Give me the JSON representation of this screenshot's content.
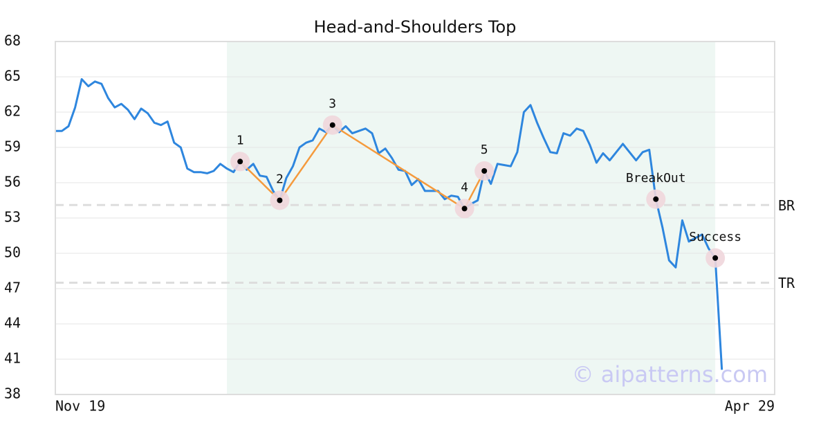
{
  "chart_data": {
    "type": "line",
    "title": "Head-and-Shoulders Top",
    "categories": [
      "Nov 19",
      null,
      null,
      null,
      null,
      null,
      null,
      null,
      null,
      null,
      null,
      null,
      null,
      null,
      null,
      null,
      null,
      null,
      null,
      null,
      null,
      null,
      null,
      null,
      null,
      null,
      null,
      null,
      null,
      null,
      null,
      null,
      null,
      null,
      null,
      null,
      null,
      null,
      null,
      null,
      null,
      null,
      null,
      null,
      null,
      null,
      null,
      null,
      null,
      null,
      null,
      null,
      null,
      null,
      null,
      null,
      null,
      null,
      null,
      null,
      null,
      null,
      null,
      null,
      null,
      null,
      null,
      null,
      null,
      null,
      null,
      null,
      null,
      null,
      null,
      null,
      null,
      null,
      null,
      null,
      null,
      null,
      null,
      null,
      null,
      null,
      null,
      null,
      null,
      null,
      null,
      null,
      null,
      null,
      null,
      null,
      null,
      null,
      null,
      null,
      null,
      "Apr 29"
    ],
    "series": [
      {
        "color": "#2e86de",
        "values": [
          60.4,
          60.4,
          60.8,
          62.4,
          64.8,
          64.2,
          64.6,
          64.4,
          63.2,
          62.4,
          62.7,
          62.2,
          61.4,
          62.3,
          61.9,
          61.1,
          60.9,
          61.2,
          59.4,
          59.0,
          57.2,
          56.9,
          56.9,
          56.8,
          57.0,
          57.6,
          57.2,
          56.9,
          57.8,
          57.1,
          57.6,
          56.6,
          56.5,
          55.3,
          54.5,
          56.4,
          57.4,
          59.0,
          59.4,
          59.6,
          60.6,
          60.3,
          60.9,
          60.3,
          60.8,
          60.2,
          60.4,
          60.6,
          60.2,
          58.5,
          58.9,
          58.1,
          57.1,
          57.0,
          55.8,
          56.3,
          55.3,
          55.3,
          55.3,
          54.6,
          54.9,
          54.8,
          53.8,
          54.2,
          54.5,
          57.0,
          55.9,
          57.6,
          57.5,
          57.4,
          58.6,
          62.0,
          62.6,
          61.1,
          59.8,
          58.6,
          58.5,
          60.2,
          60.0,
          60.6,
          60.4,
          59.2,
          57.7,
          58.5,
          57.9,
          58.6,
          59.3,
          58.6,
          57.9,
          58.6,
          58.8,
          54.6,
          52.2,
          49.4,
          48.8,
          52.8,
          51.0,
          51.3,
          51.6,
          50.4,
          49.6,
          40.1
        ]
      }
    ],
    "pattern_color": "#f59a3c",
    "pattern_points": [
      {
        "label": "1",
        "index": 28,
        "value": 57.8
      },
      {
        "label": "2",
        "index": 34,
        "value": 54.5
      },
      {
        "label": "3",
        "index": 42,
        "value": 60.9
      },
      {
        "label": "4",
        "index": 62,
        "value": 53.8
      },
      {
        "label": "5",
        "index": 65,
        "value": 57.0
      }
    ],
    "signal_points": [
      {
        "label": "BreakOut",
        "index": 91,
        "value": 54.6
      },
      {
        "label": "Success",
        "index": 100,
        "value": 49.6
      }
    ],
    "levels": [
      {
        "name": "BR",
        "value": 54.1
      },
      {
        "name": "TR",
        "value": 47.5
      }
    ],
    "highlight": [
      26,
      100
    ],
    "highlight_color": "#eef7f3",
    "ylim": [
      38,
      68
    ],
    "yticks": [
      38,
      41,
      44,
      47,
      50,
      53,
      56,
      59,
      62,
      65,
      68
    ],
    "grid": true,
    "watermark": "© aipatterns.com"
  }
}
